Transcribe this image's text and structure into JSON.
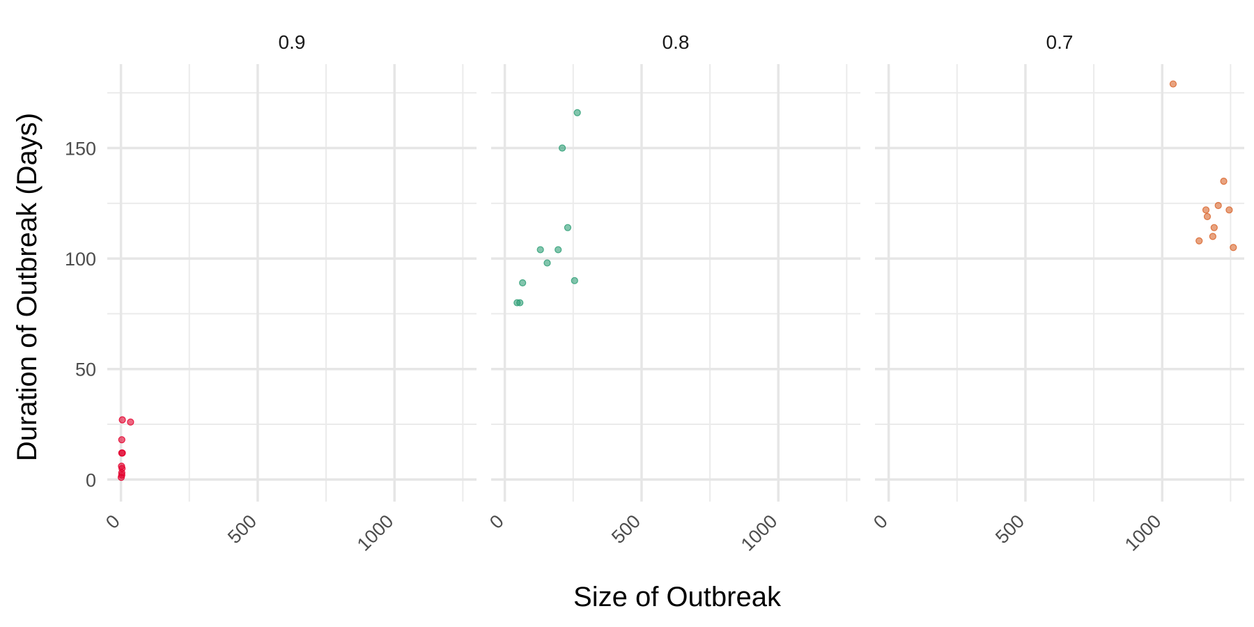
{
  "chart_data": {
    "type": "scatter",
    "xlabel": "Size of Outbreak",
    "ylabel": "Duration of Outbreak (Days)",
    "xlim": [
      -50,
      1300
    ],
    "ylim": [
      -10,
      188
    ],
    "x_ticks": [
      0,
      500,
      1000
    ],
    "x_tick_labels": [
      "0",
      "500",
      "1000"
    ],
    "y_ticks": [
      0,
      50,
      100,
      150
    ],
    "y_tick_labels": [
      "0",
      "50",
      "100",
      "150"
    ],
    "grid": true,
    "legend": "none",
    "panels": [
      {
        "label": "0.9",
        "color": "#e3002d",
        "points": [
          {
            "x": 5,
            "y": 27
          },
          {
            "x": 35,
            "y": 26
          },
          {
            "x": 3,
            "y": 18
          },
          {
            "x": 3,
            "y": 12
          },
          {
            "x": 5,
            "y": 12
          },
          {
            "x": 2,
            "y": 6
          },
          {
            "x": 4,
            "y": 5
          },
          {
            "x": 3,
            "y": 3
          },
          {
            "x": 1,
            "y": 1
          },
          {
            "x": 3,
            "y": 2
          }
        ]
      },
      {
        "label": "0.8",
        "color": "#2e9f76",
        "points": [
          {
            "x": 265,
            "y": 166
          },
          {
            "x": 210,
            "y": 150
          },
          {
            "x": 230,
            "y": 114
          },
          {
            "x": 130,
            "y": 104
          },
          {
            "x": 195,
            "y": 104
          },
          {
            "x": 155,
            "y": 98
          },
          {
            "x": 255,
            "y": 90
          },
          {
            "x": 65,
            "y": 89
          },
          {
            "x": 45,
            "y": 80
          },
          {
            "x": 55,
            "y": 80
          }
        ]
      },
      {
        "label": "0.7",
        "color": "#d9652b",
        "points": [
          {
            "x": 1040,
            "y": 179
          },
          {
            "x": 1225,
            "y": 135
          },
          {
            "x": 1205,
            "y": 124
          },
          {
            "x": 1160,
            "y": 122
          },
          {
            "x": 1245,
            "y": 122
          },
          {
            "x": 1165,
            "y": 119
          },
          {
            "x": 1190,
            "y": 114
          },
          {
            "x": 1185,
            "y": 110
          },
          {
            "x": 1135,
            "y": 108
          },
          {
            "x": 1260,
            "y": 105
          }
        ]
      }
    ]
  }
}
